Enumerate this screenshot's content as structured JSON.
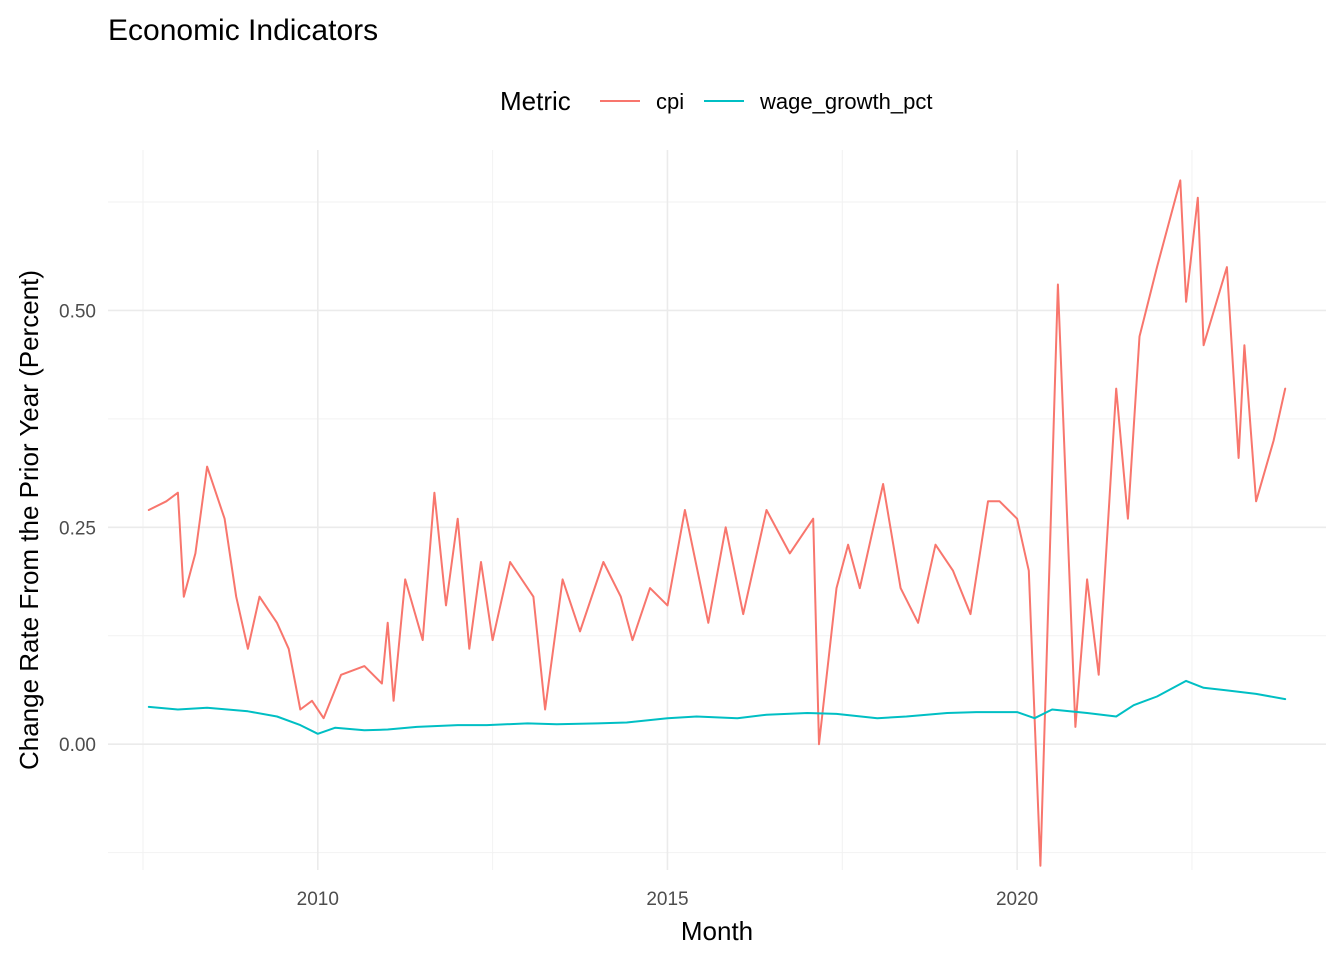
{
  "chart_data": {
    "type": "line",
    "title": "Economic Indicators",
    "xlabel": "Month",
    "ylabel": "Change Rate From the Prior Year (Percent)",
    "legend": {
      "title": "Metric",
      "position": "top"
    },
    "grid": true,
    "xlim": [
      "2007-01",
      "2024-06"
    ],
    "ylim": [
      -0.145,
      0.685
    ],
    "x_ticks": [
      "2010",
      "2015",
      "2020"
    ],
    "y_ticks": [
      "0.00",
      "0.25",
      "0.50"
    ],
    "series": [
      {
        "name": "cpi",
        "color": "#F8766D",
        "points": [
          [
            "2007-08",
            0.27
          ],
          [
            "2007-11",
            0.28
          ],
          [
            "2008-01",
            0.29
          ],
          [
            "2008-02",
            0.17
          ],
          [
            "2008-04",
            0.22
          ],
          [
            "2008-06",
            0.32
          ],
          [
            "2008-09",
            0.26
          ],
          [
            "2008-11",
            0.17
          ],
          [
            "2009-01",
            0.11
          ],
          [
            "2009-03",
            0.17
          ],
          [
            "2009-06",
            0.14
          ],
          [
            "2009-08",
            0.11
          ],
          [
            "2009-10",
            0.04
          ],
          [
            "2009-12",
            0.05
          ],
          [
            "2010-02",
            0.03
          ],
          [
            "2010-05",
            0.08
          ],
          [
            "2010-09",
            0.09
          ],
          [
            "2010-12",
            0.07
          ],
          [
            "2011-01",
            0.14
          ],
          [
            "2011-02",
            0.05
          ],
          [
            "2011-04",
            0.19
          ],
          [
            "2011-07",
            0.12
          ],
          [
            "2011-09",
            0.29
          ],
          [
            "2011-11",
            0.16
          ],
          [
            "2012-01",
            0.26
          ],
          [
            "2012-03",
            0.11
          ],
          [
            "2012-05",
            0.21
          ],
          [
            "2012-07",
            0.12
          ],
          [
            "2012-10",
            0.21
          ],
          [
            "2013-02",
            0.17
          ],
          [
            "2013-04",
            0.04
          ],
          [
            "2013-07",
            0.19
          ],
          [
            "2013-10",
            0.13
          ],
          [
            "2014-02",
            0.21
          ],
          [
            "2014-05",
            0.17
          ],
          [
            "2014-07",
            0.12
          ],
          [
            "2014-10",
            0.18
          ],
          [
            "2015-01",
            0.16
          ],
          [
            "2015-04",
            0.27
          ],
          [
            "2015-08",
            0.14
          ],
          [
            "2015-11",
            0.25
          ],
          [
            "2016-02",
            0.15
          ],
          [
            "2016-06",
            0.27
          ],
          [
            "2016-10",
            0.22
          ],
          [
            "2017-02",
            0.26
          ],
          [
            "2017-03",
            0.0
          ],
          [
            "2017-06",
            0.18
          ],
          [
            "2017-08",
            0.23
          ],
          [
            "2017-10",
            0.18
          ],
          [
            "2018-02",
            0.3
          ],
          [
            "2018-05",
            0.18
          ],
          [
            "2018-08",
            0.14
          ],
          [
            "2018-11",
            0.23
          ],
          [
            "2019-02",
            0.2
          ],
          [
            "2019-05",
            0.15
          ],
          [
            "2019-08",
            0.28
          ],
          [
            "2019-10",
            0.28
          ],
          [
            "2020-01",
            0.26
          ],
          [
            "2020-03",
            0.2
          ],
          [
            "2020-05",
            -0.14
          ],
          [
            "2020-08",
            0.53
          ],
          [
            "2020-11",
            0.02
          ],
          [
            "2021-01",
            0.19
          ],
          [
            "2021-03",
            0.08
          ],
          [
            "2021-06",
            0.41
          ],
          [
            "2021-08",
            0.26
          ],
          [
            "2021-10",
            0.47
          ],
          [
            "2022-01",
            0.55
          ],
          [
            "2022-05",
            0.65
          ],
          [
            "2022-06",
            0.51
          ],
          [
            "2022-08",
            0.63
          ],
          [
            "2022-09",
            0.46
          ],
          [
            "2023-01",
            0.55
          ],
          [
            "2023-03",
            0.33
          ],
          [
            "2023-04",
            0.46
          ],
          [
            "2023-06",
            0.28
          ],
          [
            "2023-09",
            0.35
          ],
          [
            "2023-11",
            0.41
          ]
        ]
      },
      {
        "name": "wage_growth_pct",
        "color": "#00BFC4",
        "points": [
          [
            "2007-08",
            0.043
          ],
          [
            "2008-01",
            0.04
          ],
          [
            "2008-06",
            0.042
          ],
          [
            "2009-01",
            0.038
          ],
          [
            "2009-06",
            0.032
          ],
          [
            "2009-10",
            0.022
          ],
          [
            "2010-01",
            0.012
          ],
          [
            "2010-04",
            0.019
          ],
          [
            "2010-09",
            0.016
          ],
          [
            "2011-01",
            0.017
          ],
          [
            "2011-06",
            0.02
          ],
          [
            "2012-01",
            0.022
          ],
          [
            "2012-06",
            0.022
          ],
          [
            "2013-01",
            0.024
          ],
          [
            "2013-06",
            0.023
          ],
          [
            "2014-01",
            0.024
          ],
          [
            "2014-06",
            0.025
          ],
          [
            "2015-01",
            0.03
          ],
          [
            "2015-06",
            0.032
          ],
          [
            "2016-01",
            0.03
          ],
          [
            "2016-06",
            0.034
          ],
          [
            "2017-01",
            0.036
          ],
          [
            "2017-06",
            0.035
          ],
          [
            "2018-01",
            0.03
          ],
          [
            "2018-06",
            0.032
          ],
          [
            "2019-01",
            0.036
          ],
          [
            "2019-06",
            0.037
          ],
          [
            "2020-01",
            0.037
          ],
          [
            "2020-04",
            0.03
          ],
          [
            "2020-07",
            0.04
          ],
          [
            "2021-01",
            0.036
          ],
          [
            "2021-06",
            0.032
          ],
          [
            "2021-09",
            0.045
          ],
          [
            "2022-01",
            0.055
          ],
          [
            "2022-06",
            0.073
          ],
          [
            "2022-09",
            0.065
          ],
          [
            "2023-01",
            0.062
          ],
          [
            "2023-06",
            0.058
          ],
          [
            "2023-11",
            0.052
          ]
        ]
      }
    ]
  }
}
